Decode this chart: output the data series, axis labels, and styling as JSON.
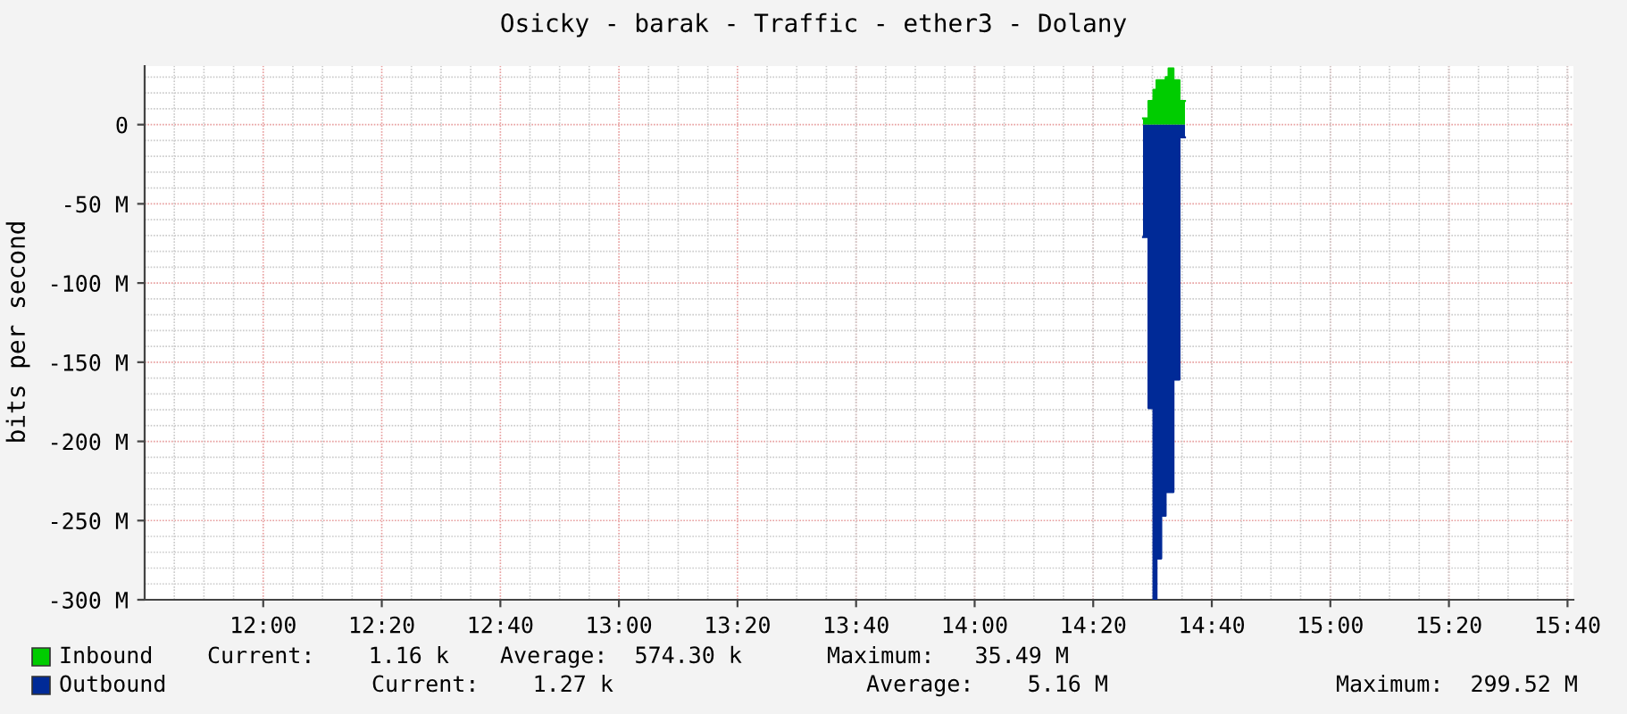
{
  "chart_data": {
    "type": "area",
    "title": "Osicky - barak - Traffic - ether3 - Dolany",
    "ylabel": "bits per second",
    "x": [
      14.4733,
      14.4887,
      14.5026,
      14.5113,
      14.5246,
      14.5369,
      14.5451,
      14.559,
      14.5759,
      14.5913
    ],
    "series": [
      {
        "name": "Inbound",
        "color": "#00cc00",
        "values": [
          4000000,
          15000000,
          22000000,
          28000000,
          28000000,
          30000000,
          35500000,
          28000000,
          15000000,
          15000000
        ]
      },
      {
        "name": "Outbound",
        "color": "#002a97",
        "values": [
          -71000000,
          -179000000,
          -300000000,
          -274000000,
          -247000000,
          -232000000,
          -232000000,
          -161000000,
          -8000000,
          -8000000
        ]
      }
    ],
    "xlim": [
      11.6667,
      15.6833
    ],
    "xticks": [
      {
        "value": 12,
        "label": "12:00"
      },
      {
        "value": 12.3333,
        "label": "12:20"
      },
      {
        "value": 12.6667,
        "label": "12:40"
      },
      {
        "value": 13,
        "label": "13:00"
      },
      {
        "value": 13.3333,
        "label": "13:20"
      },
      {
        "value": 13.6667,
        "label": "13:40"
      },
      {
        "value": 14,
        "label": "14:00"
      },
      {
        "value": 14.3333,
        "label": "14:20"
      },
      {
        "value": 14.6667,
        "label": "14:40"
      },
      {
        "value": 15,
        "label": "15:00"
      },
      {
        "value": 15.3333,
        "label": "15:20"
      },
      {
        "value": 15.6667,
        "label": "15:40"
      }
    ],
    "ylim": [
      -300000000,
      37000000
    ],
    "yticks": [
      {
        "value": 0,
        "label": "0"
      },
      {
        "value": -50000000,
        "label": "-50 M"
      },
      {
        "value": -100000000,
        "label": "-100 M"
      },
      {
        "value": -150000000,
        "label": "-150 M"
      },
      {
        "value": -200000000,
        "label": "-200 M"
      },
      {
        "value": -250000000,
        "label": "-250 M"
      },
      {
        "value": -300000000,
        "label": "-300 M"
      }
    ],
    "grid": true,
    "legend": "bottom left",
    "annotations": [
      "Current:    1.16 k",
      "Average:  574.30 k",
      "Maximum:   35.49 M",
      "Current:    1.27 k",
      "Average:    5.16 M",
      "Maximum:  299.52 M"
    ]
  }
}
